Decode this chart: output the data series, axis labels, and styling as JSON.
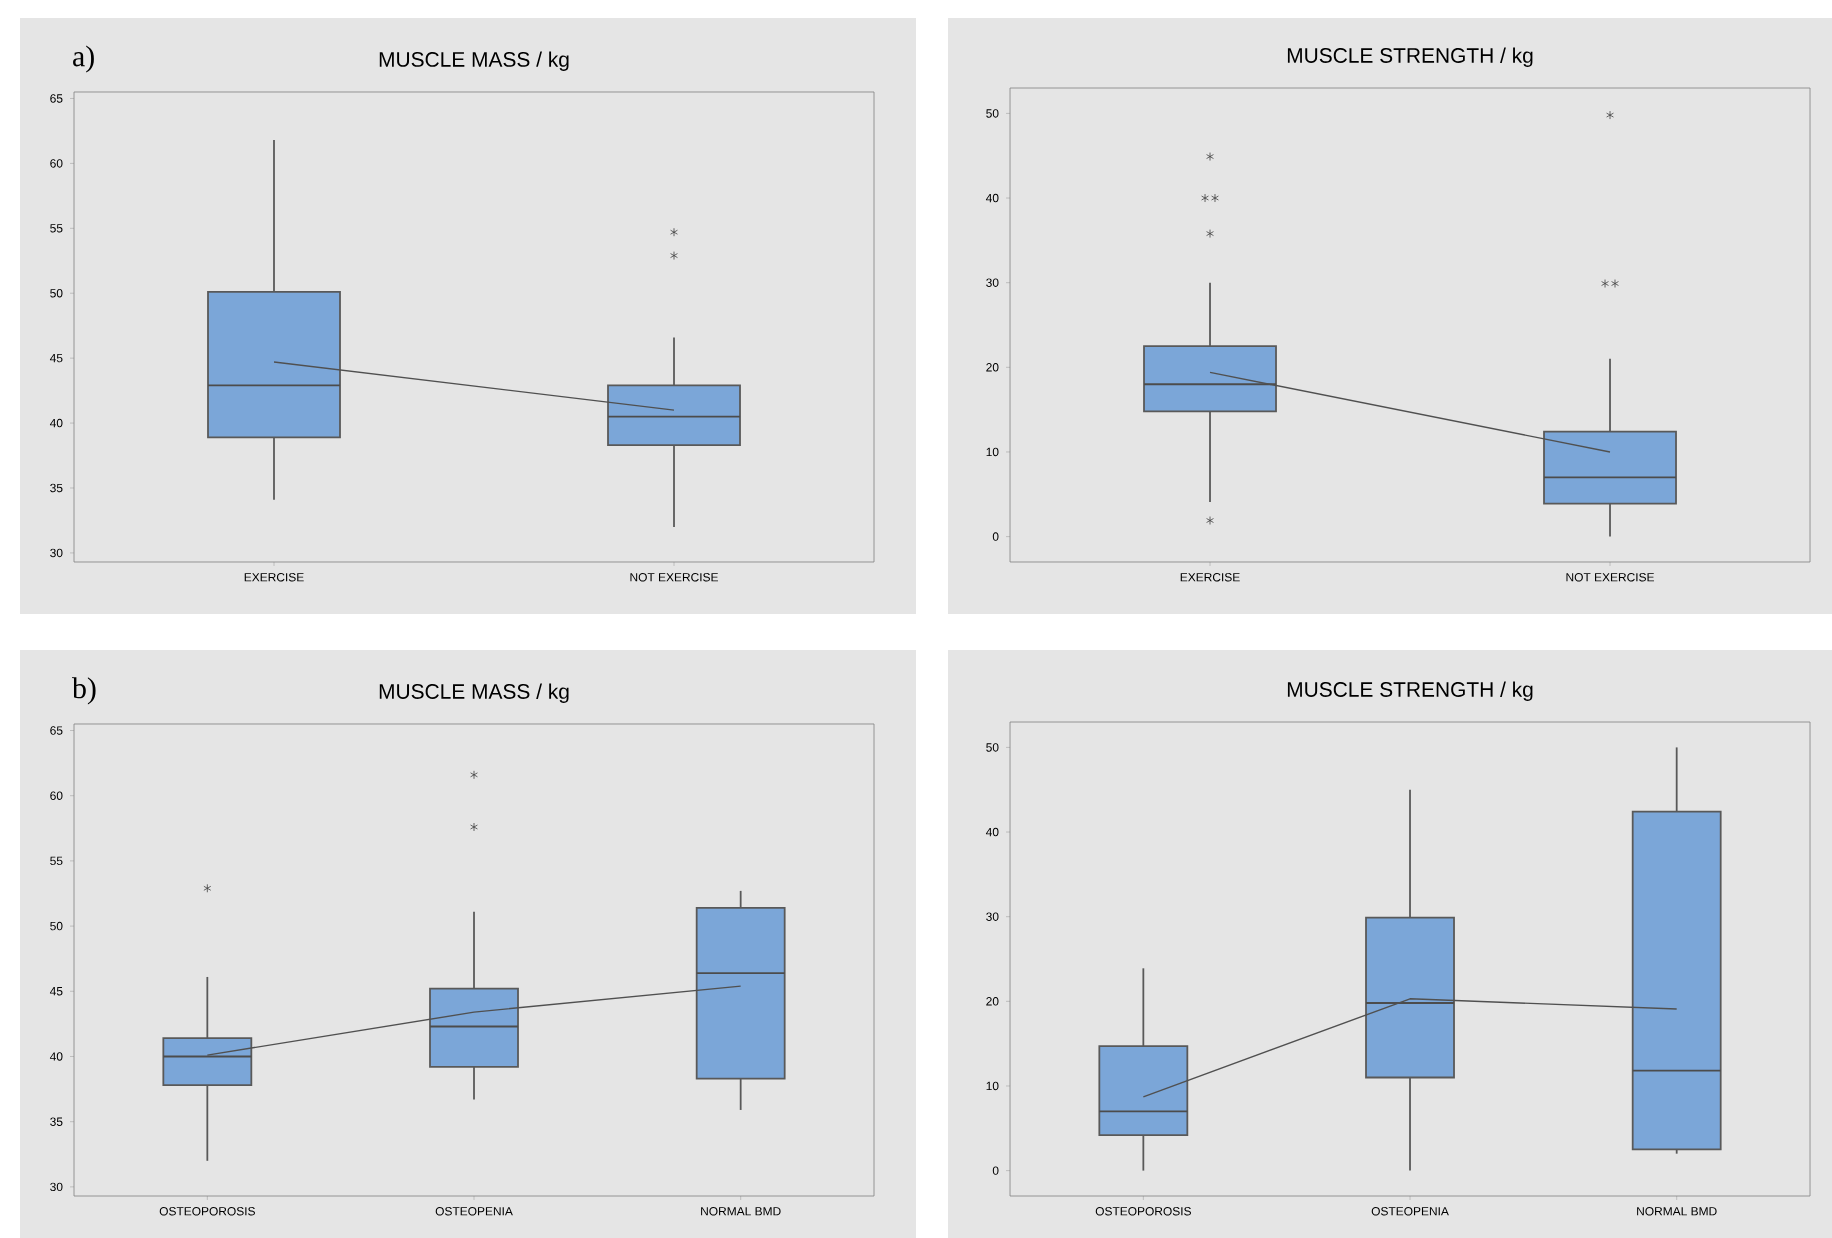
{
  "chart_data": [
    {
      "type": "box",
      "title": "MUSCLE MASS / kg",
      "annotations": [
        "a)"
      ],
      "categories": [
        "EXERCISE",
        "NOT EXERCISE"
      ],
      "ylim": [
        29.3,
        65.5
      ],
      "yticks": [
        30,
        35,
        40,
        45,
        50,
        55,
        60,
        65
      ],
      "series": [
        {
          "color": "#7ba6d8",
          "boxes": [
            {
              "low": 34.1,
              "q1": 38.9,
              "median": 42.9,
              "q3": 50.1,
              "high": 61.8
            },
            {
              "low": 32.0,
              "q1": 38.3,
              "median": 40.5,
              "q3": 42.9,
              "high": 46.6,
              "outliers": [
                54.7,
                52.9
              ]
            }
          ]
        },
        {
          "type": "line",
          "color": "#505050",
          "values": [
            44.7,
            41.0
          ]
        }
      ]
    },
    {
      "type": "box",
      "title": "MUSCLE STRENGTH / kg",
      "categories": [
        "EXERCISE",
        "NOT EXERCISE"
      ],
      "ylim": [
        -3,
        53
      ],
      "yticks": [
        0,
        10,
        20,
        30,
        40,
        50
      ],
      "series": [
        {
          "color": "#7ba6d8",
          "boxes": [
            {
              "low": 4.1,
              "q1": 14.8,
              "median": 18.0,
              "q3": 22.5,
              "high": 30.0,
              "outliers": [
                44.9,
                40,
                40,
                35.8,
                1.9
              ]
            },
            {
              "low": 0,
              "q1": 3.9,
              "median": 7.0,
              "q3": 12.4,
              "high": 21.0,
              "outliers": [
                49.8,
                29.9,
                29.9
              ]
            }
          ]
        },
        {
          "type": "line",
          "color": "#505050",
          "values": [
            19.4,
            10.0
          ]
        }
      ]
    },
    {
      "type": "box",
      "title": "MUSCLE MASS / kg",
      "annotations": [
        "b)"
      ],
      "categories": [
        "OSTEOPOROSIS",
        "OSTEOPENIA",
        "NORMAL BMD"
      ],
      "ylim": [
        29.3,
        65.5
      ],
      "yticks": [
        30,
        35,
        40,
        45,
        50,
        55,
        60,
        65
      ],
      "series": [
        {
          "color": "#7ba6d8",
          "boxes": [
            {
              "low": 32.0,
              "q1": 37.8,
              "median": 40.0,
              "q3": 41.4,
              "high": 46.1,
              "outliers": [
                52.9
              ]
            },
            {
              "low": 36.7,
              "q1": 39.2,
              "median": 42.3,
              "q3": 45.2,
              "high": 51.1,
              "outliers": [
                61.6,
                57.6
              ]
            },
            {
              "low": 35.9,
              "q1": 38.3,
              "median": 46.4,
              "q3": 51.4,
              "high": 52.7
            }
          ]
        },
        {
          "type": "line",
          "color": "#505050",
          "values": [
            40.1,
            43.4,
            45.4
          ]
        }
      ]
    },
    {
      "type": "box",
      "title": "MUSCLE STRENGTH / kg",
      "categories": [
        "OSTEOPOROSIS",
        "OSTEOPENIA",
        "NORMAL BMD"
      ],
      "ylim": [
        -3,
        53
      ],
      "yticks": [
        0,
        10,
        20,
        30,
        40,
        50
      ],
      "series": [
        {
          "color": "#7ba6d8",
          "boxes": [
            {
              "low": 0,
              "q1": 4.2,
              "median": 7.0,
              "q3": 14.7,
              "high": 23.9
            },
            {
              "low": 0,
              "q1": 11.0,
              "median": 19.8,
              "q3": 29.9,
              "high": 45.0
            },
            {
              "low": 2.0,
              "q1": 2.5,
              "median": 11.8,
              "q3": 42.4,
              "high": 50
            }
          ]
        },
        {
          "type": "line",
          "color": "#505050",
          "values": [
            8.7,
            20.3,
            19.1
          ]
        }
      ]
    }
  ]
}
